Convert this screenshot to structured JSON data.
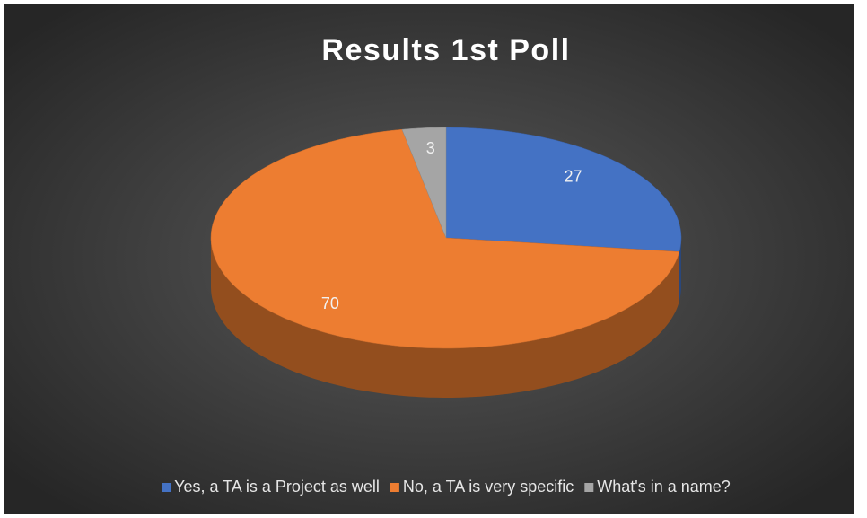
{
  "chart_data": {
    "type": "pie",
    "title": "Results 1st Poll",
    "categories": [
      "Yes, a TA is a Project as well",
      "No, a TA is very specific",
      "What's in a name?"
    ],
    "values": [
      27,
      70,
      3
    ],
    "colors": [
      "#4472c4",
      "#ed7d31",
      "#a5a5a5"
    ],
    "legend": "bottom"
  }
}
